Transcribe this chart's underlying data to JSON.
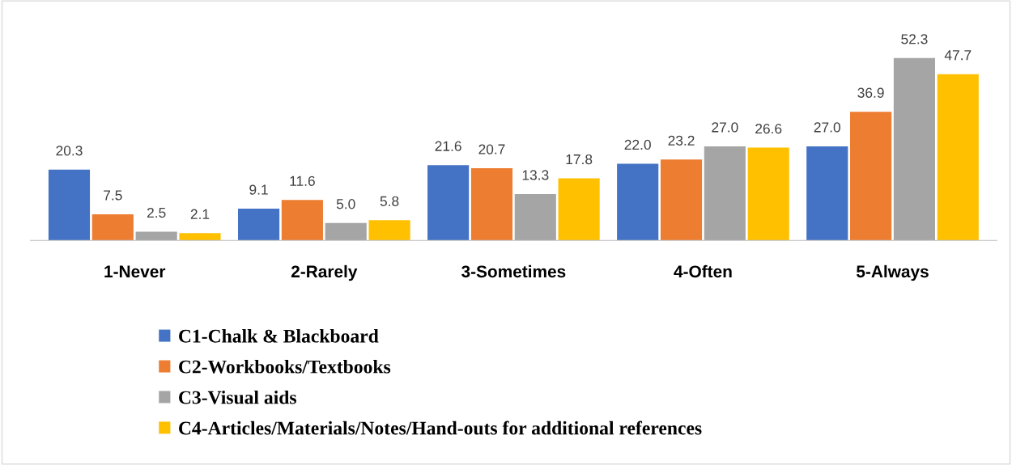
{
  "chart_data": {
    "type": "bar",
    "categories": [
      "1-Never",
      "2-Rarely",
      "3-Sometimes",
      "4-Often",
      "5-Always"
    ],
    "series": [
      {
        "name": "C1-Chalk & Blackboard",
        "color": "#4472c4",
        "values": [
          20.3,
          9.1,
          21.6,
          22.0,
          27.0
        ],
        "value_labels": [
          "20.3",
          "9.1",
          "21.6",
          "22.0",
          "27.0"
        ]
      },
      {
        "name": "C2-Workbooks/Textbooks",
        "color": "#ed7d31",
        "values": [
          7.5,
          11.6,
          20.7,
          23.2,
          36.9
        ],
        "value_labels": [
          "7.5",
          "11.6",
          "20.7",
          "23.2",
          "36.9"
        ]
      },
      {
        "name": "C3-Visual aids",
        "color": "#a5a5a5",
        "values": [
          2.5,
          5.0,
          13.3,
          27.0,
          52.3
        ],
        "value_labels": [
          "2.5",
          "5.0",
          "13.3",
          "27.0",
          "52.3"
        ]
      },
      {
        "name": "C4-Articles/Materials/Notes/Hand-outs for additional references",
        "color": "#ffc000",
        "values": [
          2.1,
          5.8,
          17.8,
          26.6,
          47.7
        ],
        "value_labels": [
          "2.1",
          "5.8",
          "17.8",
          "26.6",
          "47.7"
        ]
      }
    ],
    "legend": "bottom"
  }
}
